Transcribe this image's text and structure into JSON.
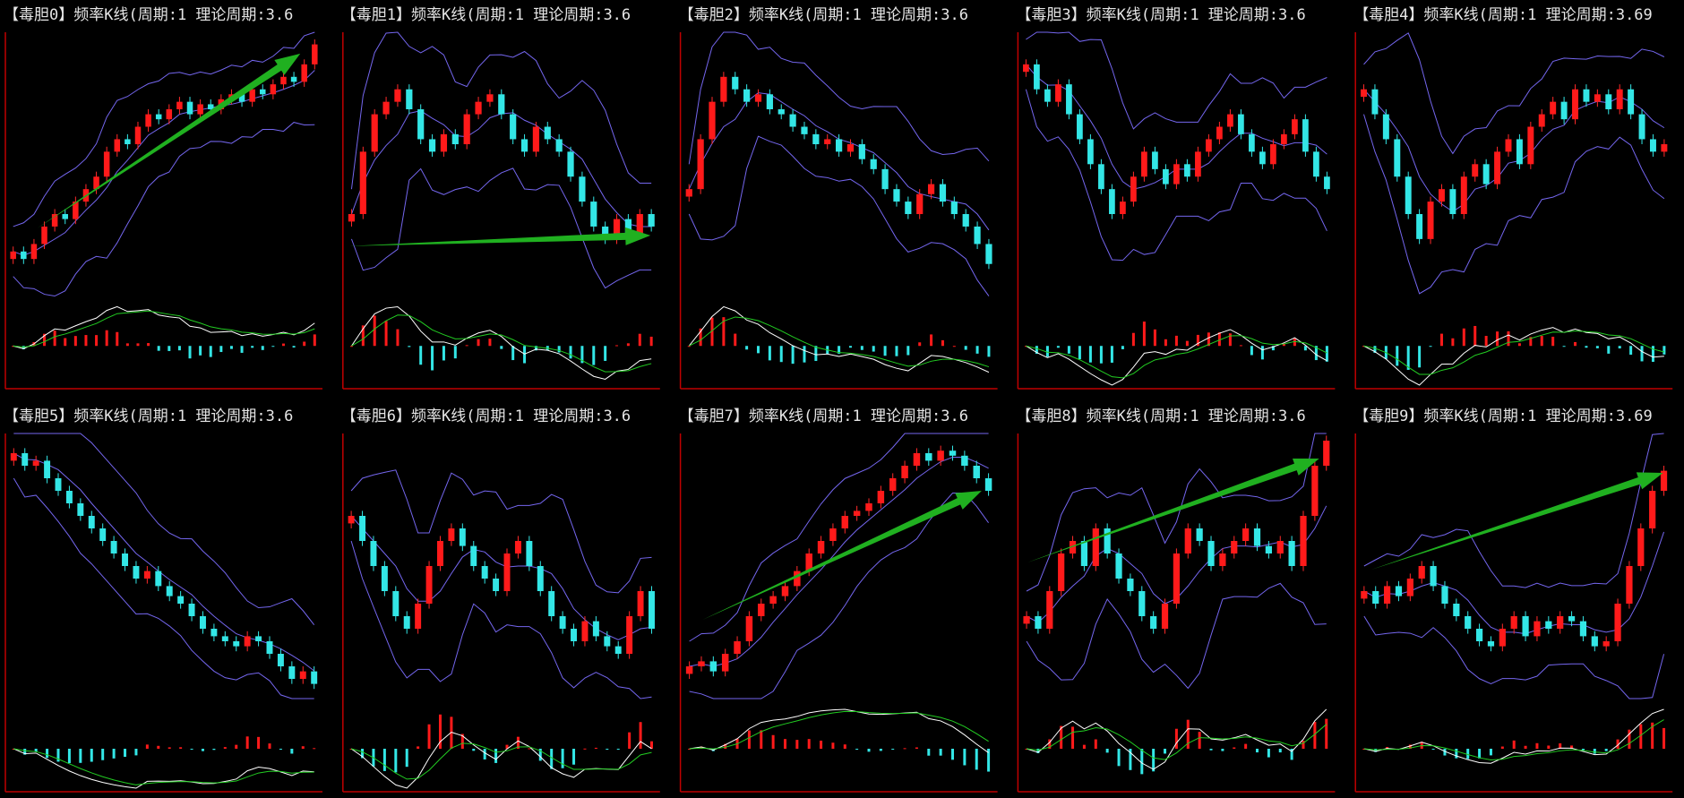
{
  "panels": [
    {
      "title": "【毒胆0】频率K线(周期:1 理论周期:3.6",
      "values": [
        15,
        12,
        18,
        25,
        30,
        28,
        35,
        40,
        45,
        55,
        60,
        58,
        65,
        70,
        68,
        72,
        75,
        70,
        74,
        72,
        76,
        78,
        75,
        80,
        78,
        82,
        85,
        83,
        90,
        98
      ]
    },
    {
      "title": "【毒胆1】频率K线(周期:1 理论周期:3.6",
      "values": [
        30,
        55,
        70,
        75,
        80,
        72,
        60,
        55,
        62,
        58,
        70,
        75,
        78,
        70,
        60,
        55,
        65,
        60,
        55,
        45,
        35,
        25,
        20,
        28,
        22,
        30,
        25
      ]
    },
    {
      "title": "【毒胆2】频率K线(周期:1 理论周期:3.6",
      "values": [
        40,
        60,
        75,
        85,
        80,
        75,
        78,
        72,
        70,
        65,
        62,
        58,
        60,
        55,
        58,
        52,
        48,
        40,
        35,
        30,
        38,
        42,
        35,
        30,
        25,
        18,
        10
      ]
    },
    {
      "title": "【毒胆3】频率K线(周期:1 理论周期:3.6",
      "values": [
        90,
        80,
        75,
        82,
        70,
        60,
        50,
        40,
        30,
        35,
        45,
        55,
        48,
        42,
        50,
        45,
        55,
        60,
        65,
        70,
        62,
        55,
        50,
        58,
        62,
        68,
        55,
        45,
        40
      ]
    },
    {
      "title": "【毒胆4】频率K线(周期:1 理论周期:3.69",
      "values": [
        80,
        70,
        60,
        45,
        30,
        20,
        35,
        40,
        30,
        45,
        50,
        42,
        55,
        60,
        50,
        65,
        70,
        75,
        68,
        80,
        75,
        78,
        72,
        80,
        70,
        60,
        55,
        58
      ]
    },
    {
      "title": "【毒胆5】频率K线(周期:1 理论周期:3.6",
      "values": [
        95,
        90,
        92,
        85,
        80,
        75,
        70,
        65,
        60,
        55,
        50,
        45,
        48,
        42,
        38,
        35,
        30,
        25,
        22,
        20,
        18,
        22,
        20,
        15,
        10,
        5,
        8,
        3
      ]
    },
    {
      "title": "【毒胆6】频率K线(周期:1 理论周期:3.6",
      "values": [
        70,
        60,
        50,
        40,
        30,
        25,
        35,
        50,
        60,
        65,
        58,
        50,
        45,
        40,
        55,
        60,
        50,
        40,
        30,
        25,
        20,
        28,
        22,
        18,
        15,
        30,
        40,
        25
      ]
    },
    {
      "title": "【毒胆7】频率K线(周期:1 理论周期:3.6",
      "values": [
        10,
        12,
        8,
        15,
        20,
        30,
        35,
        38,
        42,
        48,
        55,
        60,
        65,
        70,
        72,
        75,
        80,
        85,
        90,
        95,
        92,
        96,
        94,
        90,
        85,
        80
      ]
    },
    {
      "title": "【毒胆8】频率K线(周期:1 理论周期:3.6",
      "values": [
        30,
        25,
        40,
        55,
        60,
        50,
        65,
        55,
        45,
        40,
        30,
        25,
        35,
        55,
        65,
        60,
        50,
        55,
        60,
        65,
        58,
        55,
        60,
        50,
        70,
        90,
        100
      ]
    },
    {
      "title": "【毒胆9】频率K线(周期:1 理论周期:3.69",
      "values": [
        40,
        35,
        42,
        38,
        45,
        50,
        42,
        35,
        30,
        25,
        20,
        18,
        25,
        30,
        22,
        28,
        25,
        30,
        28,
        22,
        18,
        20,
        35,
        50,
        65,
        80,
        88
      ]
    }
  ]
}
